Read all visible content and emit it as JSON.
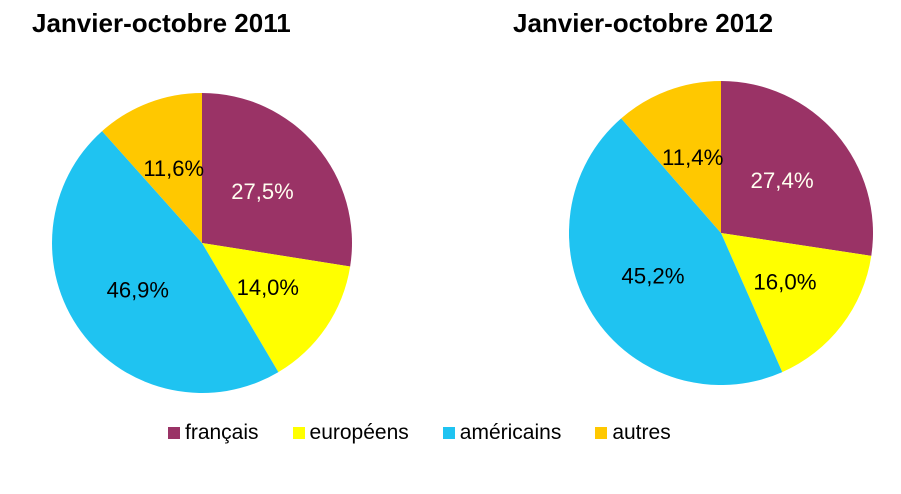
{
  "page": {
    "background_color": "#FFFFFF"
  },
  "chart_data": [
    {
      "type": "pie",
      "title": "Janvier-octobre 2011",
      "categories": [
        "français",
        "européens",
        "américains",
        "autres"
      ],
      "values": [
        27.5,
        14.0,
        46.9,
        11.6
      ],
      "value_labels": [
        "27,5%",
        "14,0%",
        "46,9%",
        "11,6%"
      ],
      "colors": [
        "#9A3366",
        "#FFFF00",
        "#1FC3F1",
        "#FFC800"
      ],
      "label_colors": [
        "#FFFFF0",
        "#000000",
        "#000000",
        "#000000"
      ],
      "start_angle_deg": 0,
      "direction": "clockwise",
      "legend_position": "bottom"
    },
    {
      "type": "pie",
      "title": "Janvier-octobre 2012",
      "categories": [
        "français",
        "européens",
        "américains",
        "autres"
      ],
      "values": [
        27.4,
        16.0,
        45.2,
        11.4
      ],
      "value_labels": [
        "27,4%",
        "16,0%",
        "45,2%",
        "11,4%"
      ],
      "colors": [
        "#9A3366",
        "#FFFF00",
        "#1FC3F1",
        "#FFC800"
      ],
      "label_colors": [
        "#FFFFF0",
        "#000000",
        "#000000",
        "#000000"
      ],
      "start_angle_deg": 0,
      "direction": "clockwise",
      "legend_position": "bottom"
    }
  ],
  "legend": {
    "items": [
      {
        "label": "français",
        "color": "#9A3366"
      },
      {
        "label": "européens",
        "color": "#FFFF00"
      },
      {
        "label": "américains",
        "color": "#1FC3F1"
      },
      {
        "label": "autres",
        "color": "#FFC800"
      }
    ]
  }
}
